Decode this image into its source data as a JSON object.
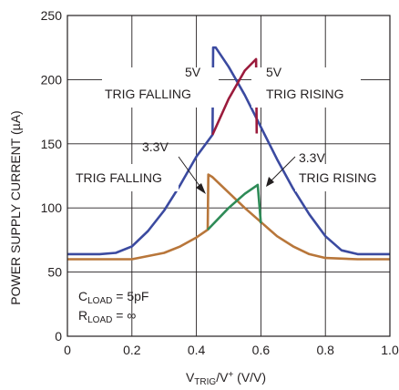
{
  "chart_data": {
    "type": "line",
    "title": "",
    "xlabel": {
      "main": "V",
      "sub": "TRIG",
      "mid": "/V",
      "sup": "+",
      "tail": " (V/V)"
    },
    "ylabel": "POWER SUPPLY CURRENT (µA)",
    "xlim": [
      0,
      1.0
    ],
    "ylim": [
      0,
      250
    ],
    "x_ticks": [
      "0",
      "0.2",
      "0.4",
      "0.6",
      "0.8",
      "1.0"
    ],
    "x_tick_values": [
      0,
      0.2,
      0.4,
      0.6,
      0.8,
      1.0
    ],
    "y_ticks": [
      "0",
      "50",
      "100",
      "150",
      "200",
      "250"
    ],
    "y_tick_values": [
      0,
      50,
      100,
      150,
      200,
      250
    ],
    "grid": true,
    "series": [
      {
        "color": "#3b4aa0",
        "points": [
          [
            0,
            64
          ],
          [
            0.1,
            64
          ],
          [
            0.15,
            65
          ],
          [
            0.2,
            70
          ],
          [
            0.25,
            82
          ],
          [
            0.3,
            98
          ],
          [
            0.35,
            118
          ],
          [
            0.4,
            140
          ],
          [
            0.45,
            157
          ],
          [
            0.452,
            225
          ],
          [
            0.46,
            225
          ],
          [
            0.5,
            210
          ],
          [
            0.55,
            188
          ],
          [
            0.6,
            163
          ],
          [
            0.65,
            138
          ],
          [
            0.7,
            115
          ],
          [
            0.75,
            95
          ],
          [
            0.8,
            78
          ],
          [
            0.85,
            67
          ],
          [
            0.9,
            64
          ],
          [
            1.0,
            64
          ]
        ]
      },
      {
        "color": "#9b1b3c",
        "points": [
          [
            0.45,
            157
          ],
          [
            0.5,
            185
          ],
          [
            0.55,
            207
          ],
          [
            0.585,
            216
          ],
          [
            0.587,
            158
          ]
        ]
      },
      {
        "color": "#b8763a",
        "points": [
          [
            0,
            60
          ],
          [
            0.1,
            60
          ],
          [
            0.2,
            60
          ],
          [
            0.3,
            65
          ],
          [
            0.35,
            70
          ],
          [
            0.4,
            77
          ],
          [
            0.435,
            83
          ],
          [
            0.437,
            126
          ],
          [
            0.45,
            124
          ],
          [
            0.5,
            112
          ],
          [
            0.55,
            100
          ],
          [
            0.6,
            89
          ],
          [
            0.65,
            78
          ],
          [
            0.7,
            70
          ],
          [
            0.75,
            64
          ],
          [
            0.8,
            61
          ],
          [
            0.9,
            60
          ],
          [
            1.0,
            60
          ]
        ]
      },
      {
        "color": "#2e8b57",
        "points": [
          [
            0.435,
            83
          ],
          [
            0.5,
            100
          ],
          [
            0.55,
            111
          ],
          [
            0.59,
            118
          ],
          [
            0.6,
            88
          ]
        ]
      }
    ],
    "annotations": [
      {
        "id": "a5f",
        "text": "5V"
      },
      {
        "id": "a5f2",
        "text": "TRIG FALLING"
      },
      {
        "id": "a5r",
        "text": "5V"
      },
      {
        "id": "a5r2",
        "text": "TRIG RISING"
      },
      {
        "id": "a33f",
        "text": "3.3V"
      },
      {
        "id": "a33f2",
        "text": "TRIG FALLING"
      },
      {
        "id": "a33r",
        "text": "3.3V"
      },
      {
        "id": "a33r2",
        "text": "TRIG RISING"
      }
    ],
    "conditions": {
      "cload": {
        "main": "C",
        "sub": "LOAD",
        "tail": " = 5pF"
      },
      "rload": {
        "main": "R",
        "sub": "LOAD",
        "tail": " = ∞"
      }
    }
  }
}
